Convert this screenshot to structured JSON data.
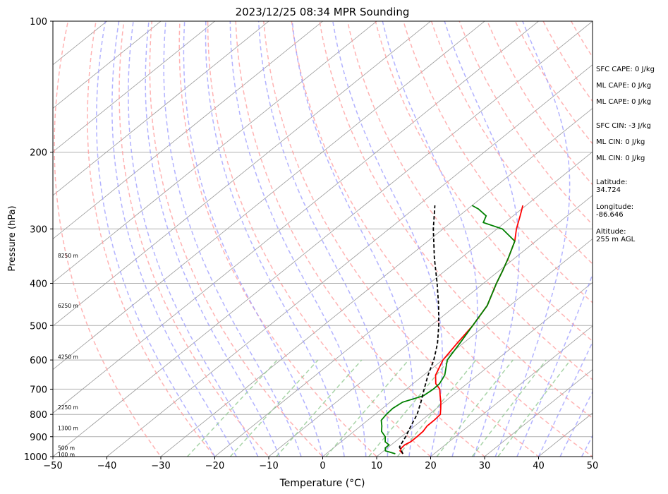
{
  "chart_data": {
    "type": "line",
    "title": "2023/12/25 08:34 MPR Sounding",
    "xlabel": "Temperature (°C)",
    "ylabel": "Pressure (hPa)",
    "xlim": [
      -50,
      50
    ],
    "ylim": [
      1000,
      100
    ],
    "y_scale": "log",
    "grid": true,
    "x_ticks": [
      "−50",
      "−40",
      "−30",
      "−20",
      "−10",
      "0",
      "10",
      "20",
      "30",
      "40",
      "50"
    ],
    "y_ticks": [
      "100",
      "200",
      "300",
      "400",
      "500",
      "600",
      "700",
      "800",
      "900",
      "1000"
    ],
    "height_labels": [
      {
        "label": "100 m",
        "pressure": 988
      },
      {
        "label": "500 m",
        "pressure": 955
      },
      {
        "label": "1300 m",
        "pressure": 860
      },
      {
        "label": "2250 m",
        "pressure": 770
      },
      {
        "label": "4250 m",
        "pressure": 590
      },
      {
        "label": "6250 m",
        "pressure": 450
      },
      {
        "label": "8250 m",
        "pressure": 345
      }
    ],
    "colors": {
      "temperature": "#ff0000",
      "dewpoint": "#008000",
      "parcel": "#000000",
      "dry_adiabats": "#ff9999",
      "moist_adiabats": "#9999ff",
      "mixing_ratio": "#99cc99",
      "isotherms": "#999999"
    },
    "series": [
      {
        "key": "temperature",
        "pressure": [
          985,
          970,
          955,
          940,
          925,
          900,
          875,
          850,
          825,
          800,
          775,
          750,
          725,
          700,
          680,
          650,
          600,
          550,
          500,
          450,
          400,
          375,
          350,
          320,
          300,
          280,
          265
        ],
        "values": [
          14.2,
          13.0,
          12.6,
          12.5,
          12.9,
          12.9,
          12.8,
          12.3,
          12.3,
          12.1,
          10.8,
          9.4,
          7.8,
          6.2,
          4.2,
          2.2,
          0.1,
          -1.1,
          -2.3,
          -4.2,
          -7.6,
          -9.3,
          -11.2,
          -13.9,
          -16.4,
          -18.7,
          -20.6
        ]
      },
      {
        "key": "dewpoint",
        "pressure": [
          985,
          970,
          955,
          940,
          925,
          900,
          875,
          850,
          825,
          800,
          775,
          750,
          725,
          700,
          680,
          650,
          600,
          550,
          500,
          450,
          400,
          375,
          350,
          320,
          300,
          290,
          280,
          270,
          265
        ],
        "values": [
          12.8,
          10.3,
          9.6,
          9.6,
          8.2,
          7.0,
          5.1,
          3.9,
          2.5,
          2.1,
          1.9,
          2.3,
          4.7,
          5.0,
          4.9,
          3.9,
          0.9,
          -0.6,
          -2.3,
          -4.2,
          -7.6,
          -9.3,
          -11.2,
          -13.9,
          -19.0,
          -24.0,
          -25.0,
          -28.0,
          -30.0
        ]
      },
      {
        "key": "parcel",
        "pressure": [
          985,
          950,
          900,
          850,
          800,
          750,
          700,
          650,
          600,
          550,
          500,
          450,
          400,
          350,
          300,
          265
        ],
        "values": [
          14.2,
          12.0,
          10.8,
          9.3,
          7.8,
          5.7,
          3.3,
          0.8,
          -1.6,
          -4.7,
          -8.6,
          -13.2,
          -18.6,
          -24.9,
          -31.8,
          -36.9
        ]
      }
    ]
  },
  "side_info": {
    "sfc_cape": "SFC CAPE: 0 J/kg",
    "ml_cape_1": "ML CAPE: 0 J/kg",
    "ml_cape_2": "ML CAPE: 0 J/kg",
    "sfc_cin": "SFC CIN: -3 J/kg",
    "ml_cin_1": "ML CIN: 0 J/kg",
    "ml_cin_2": "ML CIN: 0 J/kg",
    "latitude_label": "Latitude:",
    "latitude_value": "34.724",
    "longitude_label": "Longitude:",
    "longitude_value": "-86.646",
    "altitude_label": "Altitude:",
    "altitude_value": "255 m AGL"
  }
}
